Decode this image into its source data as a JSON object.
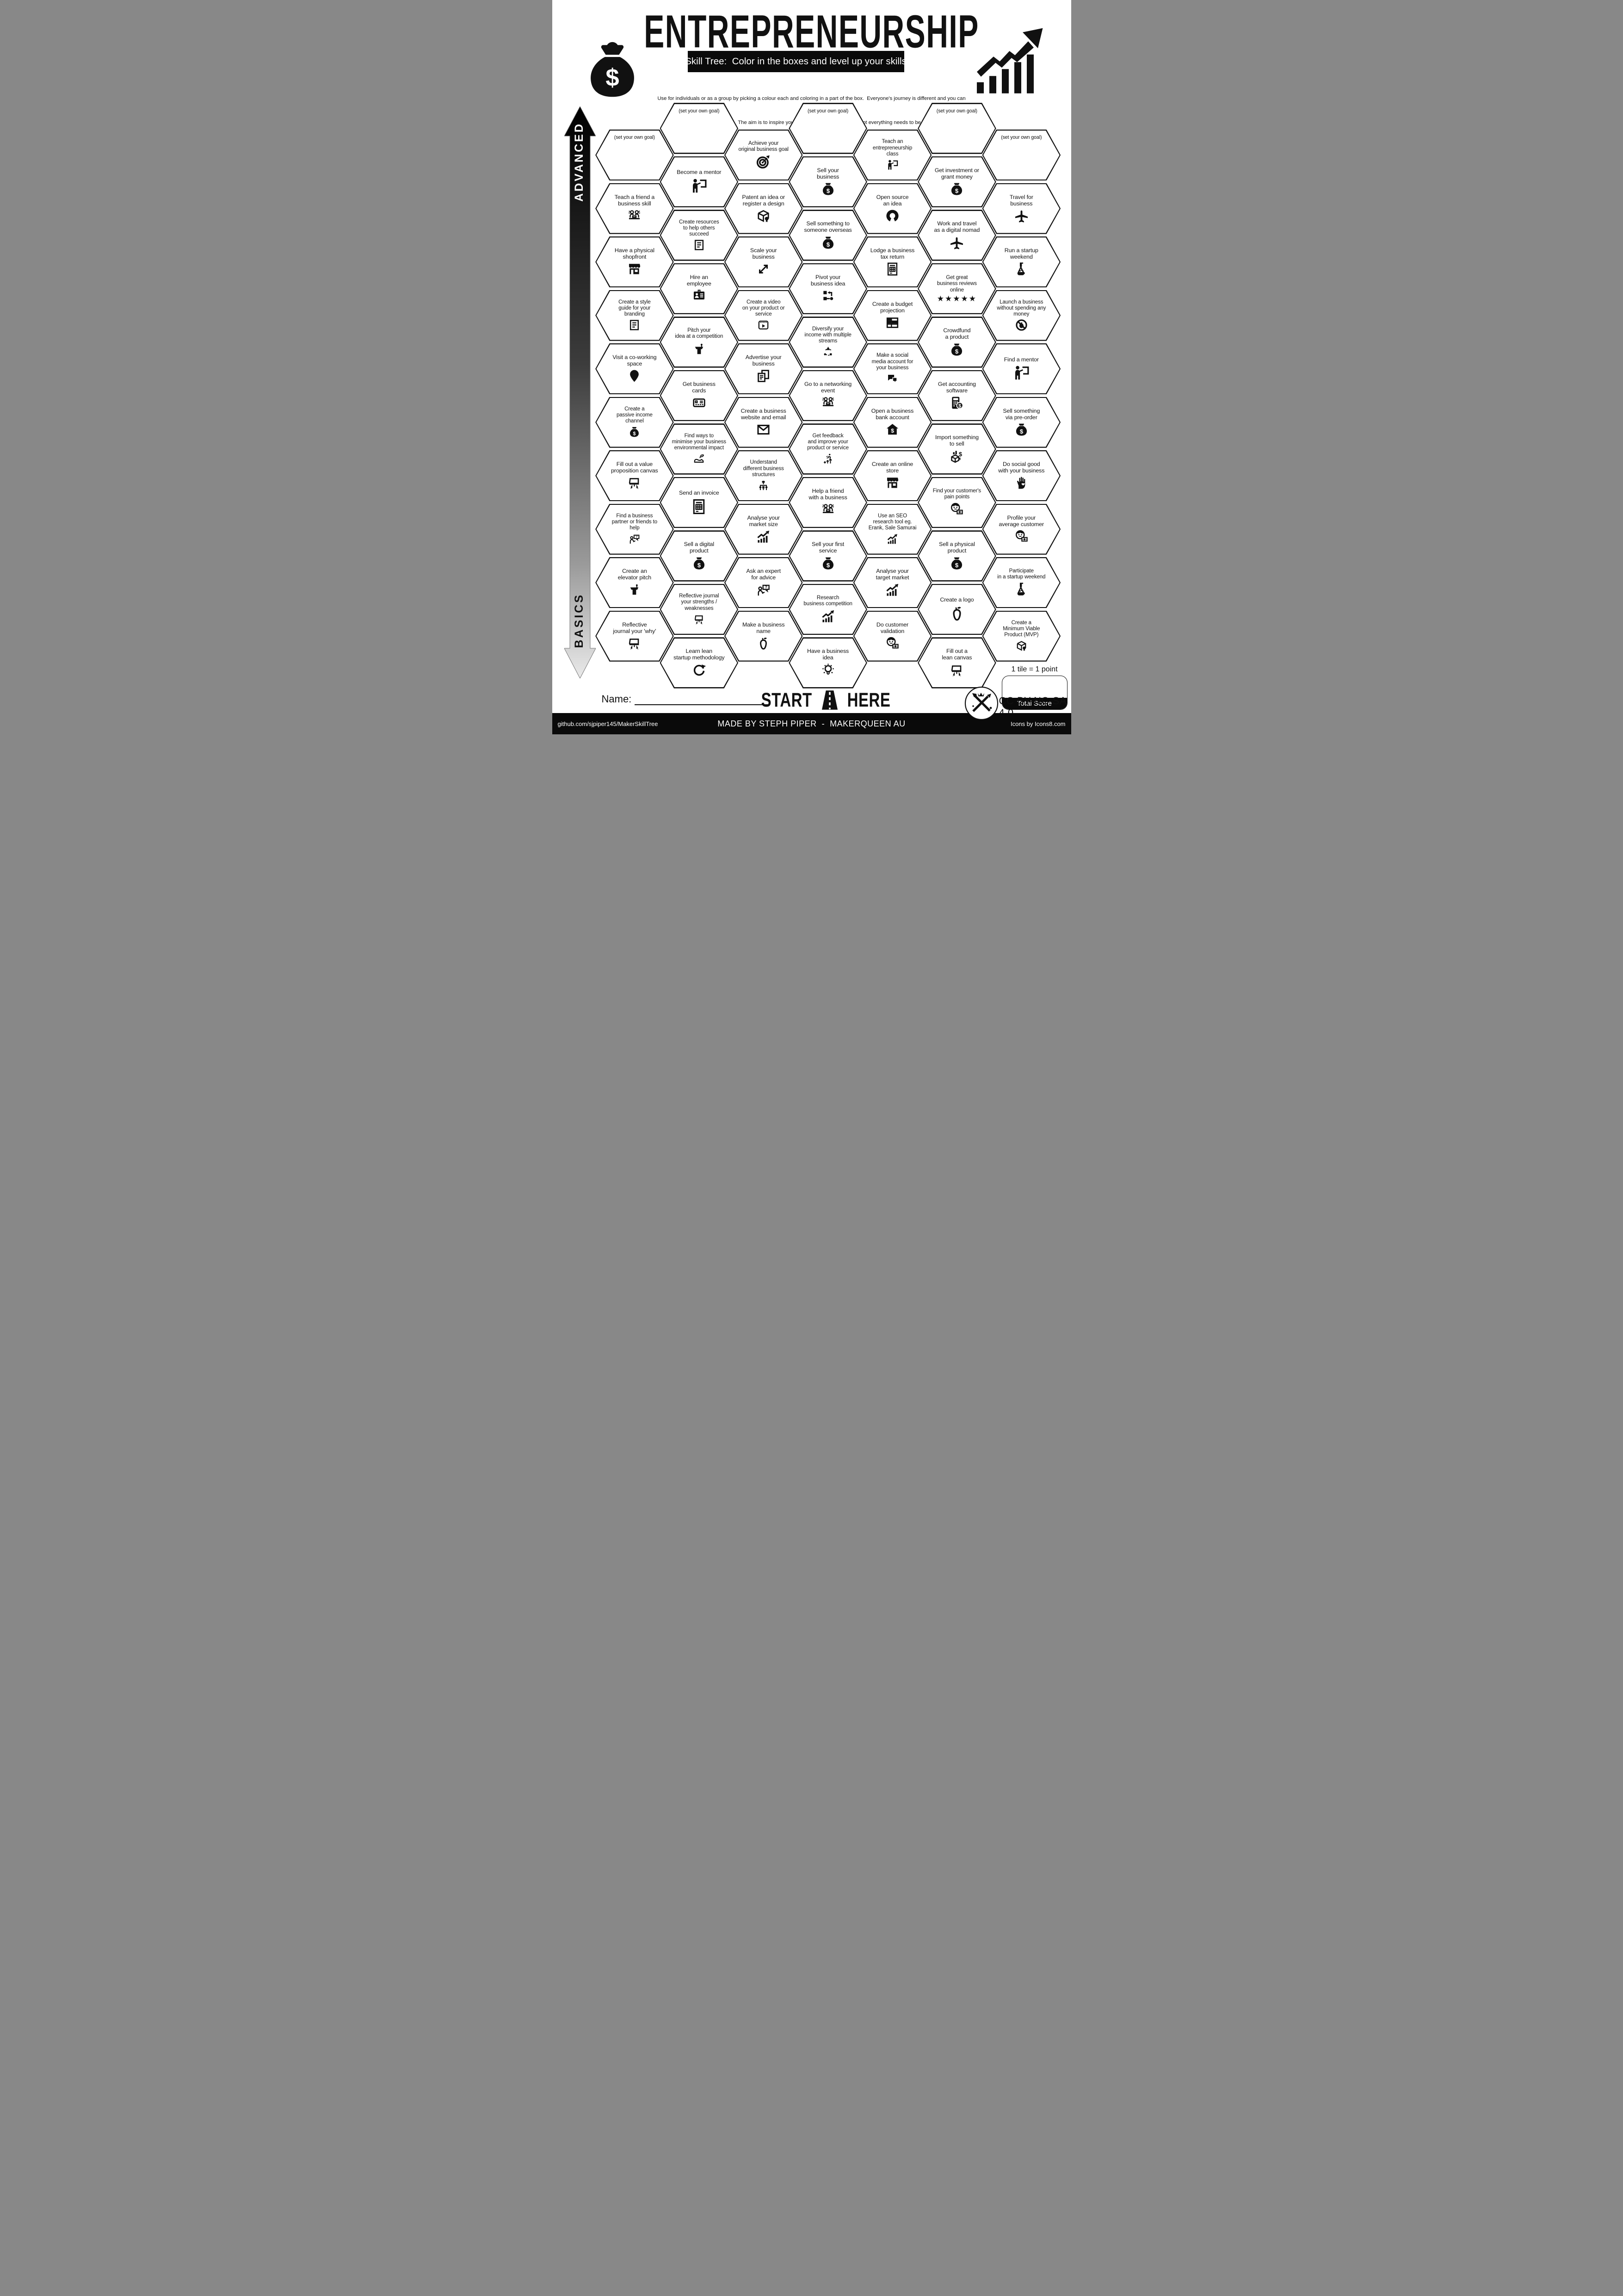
{
  "header": {
    "title": "ENTREPRENEURSHIP",
    "subtitle": "Skill Tree:  Color in the boxes and level up your skills",
    "description_line1": "Use for individuals or as a group by picking a colour each and coloring in a part of the box.  Everyone's journey is different and you can",
    "description_line2": "interpret the goals flexibly.  The aim is to inspire you to learn and try new things. Not everything needs to be completed.",
    "money_bag_icon": "money-bag-icon",
    "growth_chart_icon": "growth-chart-icon"
  },
  "axis": {
    "advanced": "ADVANCED",
    "basics": "BASICS"
  },
  "columns": [
    {
      "tiles": [
        {
          "label": "(set your own goal)",
          "goal": true,
          "icon": "none"
        },
        {
          "label": "Teach a friend a\nbusiness skill",
          "icon": "people-laptop"
        },
        {
          "label": "Have a physical\nshopfront",
          "icon": "storefront"
        },
        {
          "label": "Create a style\nguide for your\nbranding",
          "icon": "doc-lines"
        },
        {
          "label": "Visit a co-working\nspace",
          "icon": "pin"
        },
        {
          "label": "Create a\npassive income\nchannel",
          "icon": "money-bag"
        },
        {
          "label": "Fill out a value\nproposition canvas",
          "icon": "easel"
        },
        {
          "label": "Find a business\npartner or friends to\nhelp",
          "icon": "question-person"
        },
        {
          "label": "Create an\nelevator pitch",
          "icon": "podium"
        },
        {
          "label": "Reflective\njournal your 'why'",
          "icon": "easel"
        }
      ]
    },
    {
      "tiles": [
        {
          "label": "(set your own goal)",
          "goal": true,
          "icon": "none"
        },
        {
          "label": "Become a mentor",
          "icon": "teacher"
        },
        {
          "label": "Create resources\nto help others\nsucceed",
          "icon": "doc-lines"
        },
        {
          "label": "Hire an\nemployee",
          "icon": "id-card"
        },
        {
          "label": "Pitch your\nidea at a competition",
          "icon": "podium"
        },
        {
          "label": "Get business\ncards",
          "icon": "business-cards"
        },
        {
          "label": "Find ways to\nminimise your business\nenvironmental impact",
          "icon": "shoe-leaf"
        },
        {
          "label": "Send an invoice",
          "icon": "doc-grid"
        },
        {
          "label": "Sell a digital\nproduct",
          "icon": "money-bag"
        },
        {
          "label": "Reflective journal\nyour strengths /\nweaknesses",
          "icon": "easel"
        },
        {
          "label": "Learn lean\nstartup methodology",
          "icon": "refresh"
        }
      ]
    },
    {
      "tiles": [
        {
          "label": "Achieve your\noriginal business goal",
          "icon": "target"
        },
        {
          "label": "Patent an idea or\nregister a design",
          "icon": "box-ribbon"
        },
        {
          "label": "Scale your\nbusiness",
          "icon": "scale-arrows"
        },
        {
          "label": "Create a video\non your product or\nservice",
          "icon": "video"
        },
        {
          "label": "Advertise your\nbusiness",
          "icon": "advertise-pages"
        },
        {
          "label": "Create a business\nwebsite and email",
          "icon": "envelope"
        },
        {
          "label": "Understand\ndifferent business\nstructures",
          "icon": "org-tree"
        },
        {
          "label": "Analyse your\nmarket size",
          "icon": "chart-up"
        },
        {
          "label": "Ask an expert\nfor advice",
          "icon": "question-person"
        },
        {
          "label": "Make a business\nname",
          "icon": "pear"
        }
      ]
    },
    {
      "tiles": [
        {
          "label": "(set your own goal)",
          "goal": true,
          "icon": "none"
        },
        {
          "label": "Sell your\nbusiness",
          "icon": "money-bag"
        },
        {
          "label": "Sell something to\nsomeone overseas",
          "icon": "money-bag"
        },
        {
          "label": "Pivot your\nbusiness idea",
          "icon": "pivot"
        },
        {
          "label": "Diversify your\nincome with multiple\nstreams",
          "icon": "diversify"
        },
        {
          "label": "Go to a networking\nevent",
          "icon": "people-laptop"
        },
        {
          "label": "Get feedback\nand improve your\nproduct or service",
          "icon": "improve-arrows"
        },
        {
          "label": "Help a friend\nwith a business",
          "icon": "people-laptop"
        },
        {
          "label": "Sell your first\nservice",
          "icon": "money-bag"
        },
        {
          "label": "Research\nbusiness competition",
          "icon": "chart-up"
        },
        {
          "label": "Have a business\nidea",
          "icon": "lightbulb"
        }
      ]
    },
    {
      "tiles": [
        {
          "label": "Teach an\nentrepreneurship\nclass",
          "icon": "teacher"
        },
        {
          "label": "Open source\nan idea",
          "icon": "open-source"
        },
        {
          "label": "Lodge a business\ntax return",
          "icon": "doc-grid"
        },
        {
          "label": "Create a budget\nprojection",
          "icon": "budget-table"
        },
        {
          "label": "Make a social\nmedia account for\nyour business",
          "icon": "chat-bubbles"
        },
        {
          "label": "Open a business\nbank account",
          "icon": "bank-house"
        },
        {
          "label": "Create an online\nstore",
          "icon": "storefront"
        },
        {
          "label": "Use an SEO\nresearch tool eg.\nErank, Sale Samurai",
          "icon": "chart-up"
        },
        {
          "label": "Analyse your\ntarget market",
          "icon": "chart-up"
        },
        {
          "label": "Do customer\nvalidation",
          "icon": "face-money"
        }
      ]
    },
    {
      "tiles": [
        {
          "label": "(set your own goal)",
          "goal": true,
          "icon": "none"
        },
        {
          "label": "Get investment or\ngrant money",
          "icon": "money-bag"
        },
        {
          "label": "Work and travel\nas a digital nomad",
          "icon": "airplane"
        },
        {
          "label": "Get great\nbusiness reviews\nonline",
          "icon": "five-stars"
        },
        {
          "label": "Crowdfund\na product",
          "icon": "money-bag"
        },
        {
          "label": "Get accounting\nsoftware",
          "icon": "calculator-money"
        },
        {
          "label": "Import something\nto sell",
          "icon": "import-box"
        },
        {
          "label": "Find your customer's\npain points",
          "icon": "face-money"
        },
        {
          "label": "Sell a physical\nproduct",
          "icon": "money-bag"
        },
        {
          "label": "Create a logo",
          "icon": "pear"
        },
        {
          "label": "Fill out a\nlean canvas",
          "icon": "easel"
        }
      ]
    },
    {
      "tiles": [
        {
          "label": "(set your own goal)",
          "goal": true,
          "icon": "none"
        },
        {
          "label": "Travel for\nbusiness",
          "icon": "airplane"
        },
        {
          "label": "Run a startup\nweekend",
          "icon": "flask-people"
        },
        {
          "label": "Launch a business\nwithout spending any\nmoney",
          "icon": "no-money"
        },
        {
          "label": "Find a mentor",
          "icon": "teacher"
        },
        {
          "label": "Sell something\nvia pre-order",
          "icon": "money-bag"
        },
        {
          "label": "Do social good\nwith your business",
          "icon": "hand-heart"
        },
        {
          "label": "Profile your\naverage customer",
          "icon": "face-money"
        },
        {
          "label": "Participate\nin a startup weekend",
          "icon": "flask-people"
        },
        {
          "label": "Create a\nMinimum Viable\nProduct (MVP)",
          "icon": "box-ribbon"
        }
      ]
    }
  ],
  "start_here": {
    "start": "START",
    "here": "HERE",
    "icon": "road-icon"
  },
  "name_field": {
    "label": "Name:"
  },
  "score": {
    "note": "1 tile = 1 point",
    "total_label": "Total Score"
  },
  "license": {
    "text": "CC BY-NC-SA 4.0",
    "logo": "maker-logo-icon"
  },
  "footer": {
    "left": "github.com/sjpiper145/MakerSkillTree",
    "center": "MADE BY STEPH PIPER  -  MAKERQUEEN AU",
    "right": "Icons by Icons8.com"
  }
}
